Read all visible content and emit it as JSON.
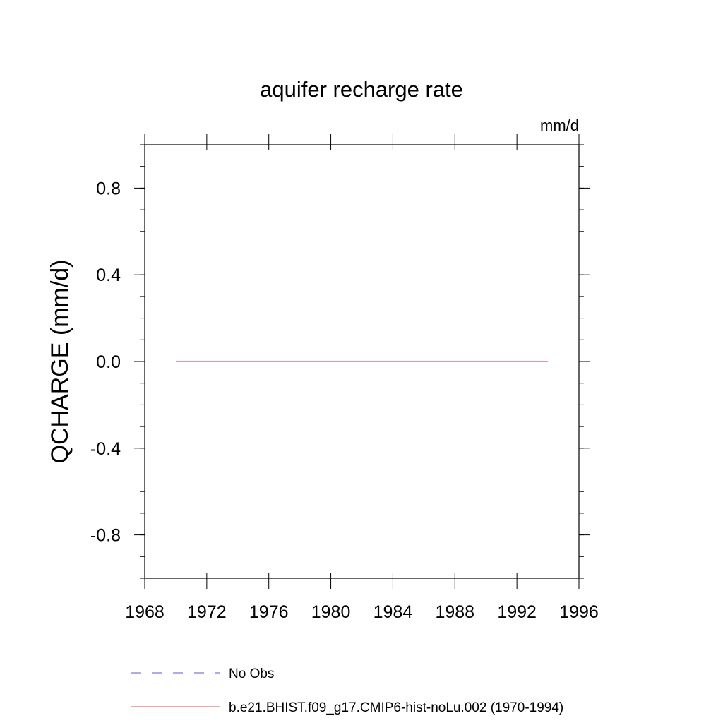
{
  "chart_data": {
    "type": "line",
    "title": "aquifer recharge rate",
    "units_label": "mm/d",
    "ylabel": "QCHARGE  (mm/d)",
    "xlabel": "",
    "xlim": [
      1968,
      1996
    ],
    "ylim": [
      -1.0,
      1.0
    ],
    "x_ticks": [
      1968,
      1972,
      1976,
      1980,
      1984,
      1988,
      1992,
      1996
    ],
    "x_tick_labels": [
      "1968",
      "1972",
      "1976",
      "1980",
      "1984",
      "1988",
      "1992",
      "1996"
    ],
    "x_minor_step": 4,
    "y_ticks": [
      -0.8,
      -0.4,
      0.0,
      0.4,
      0.8
    ],
    "y_tick_labels": [
      "-0.8",
      "-0.4",
      "0.0",
      "0.4",
      "0.8"
    ],
    "y_minor_step": 0.1,
    "grid": false,
    "legend_position": "bottom",
    "series": [
      {
        "name": "No Obs",
        "color": "#7b7bd6",
        "dash": "dashed",
        "x": [],
        "y": []
      },
      {
        "name": "b.e21.BHIST.f09_g17.CMIP6-hist-noLu.002 (1970-1994)",
        "color": "#f07070",
        "dash": "solid",
        "x": [
          1970,
          1971,
          1972,
          1973,
          1974,
          1975,
          1976,
          1977,
          1978,
          1979,
          1980,
          1981,
          1982,
          1983,
          1984,
          1985,
          1986,
          1987,
          1988,
          1989,
          1990,
          1991,
          1992,
          1993,
          1994
        ],
        "y": [
          0,
          0,
          0,
          0,
          0,
          0,
          0,
          0,
          0,
          0,
          0,
          0,
          0,
          0,
          0,
          0,
          0,
          0,
          0,
          0,
          0,
          0,
          0,
          0,
          0
        ]
      }
    ]
  }
}
